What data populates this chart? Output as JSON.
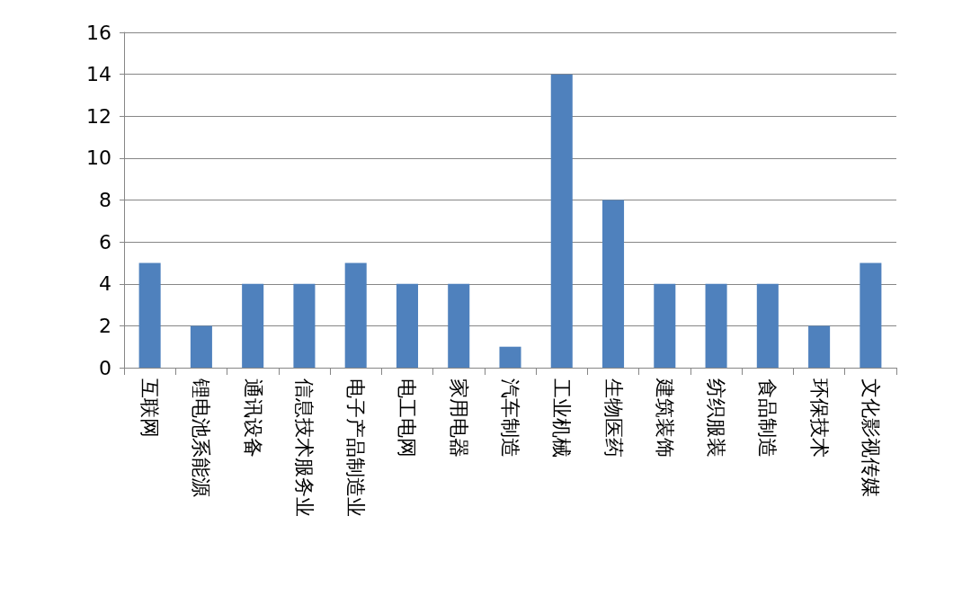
{
  "chart_data": {
    "type": "bar",
    "categories": [
      "互联网",
      "锂电池系能源",
      "通讯设备",
      "信息技术服务业",
      "电子产品制造业",
      "电工电网",
      "家用电器",
      "汽车制造",
      "工业机械",
      "生物医药",
      "建筑装饰",
      "纺织服装",
      "食品制造",
      "环保技术",
      "文化影视传媒"
    ],
    "values": [
      5,
      2,
      4,
      4,
      5,
      4,
      4,
      1,
      14,
      8,
      4,
      4,
      4,
      2,
      5
    ],
    "color": "#4f81bd",
    "ylim": [
      0,
      16
    ],
    "yticks": [
      0,
      2,
      4,
      6,
      8,
      10,
      12,
      14,
      16
    ],
    "grid": "y"
  }
}
